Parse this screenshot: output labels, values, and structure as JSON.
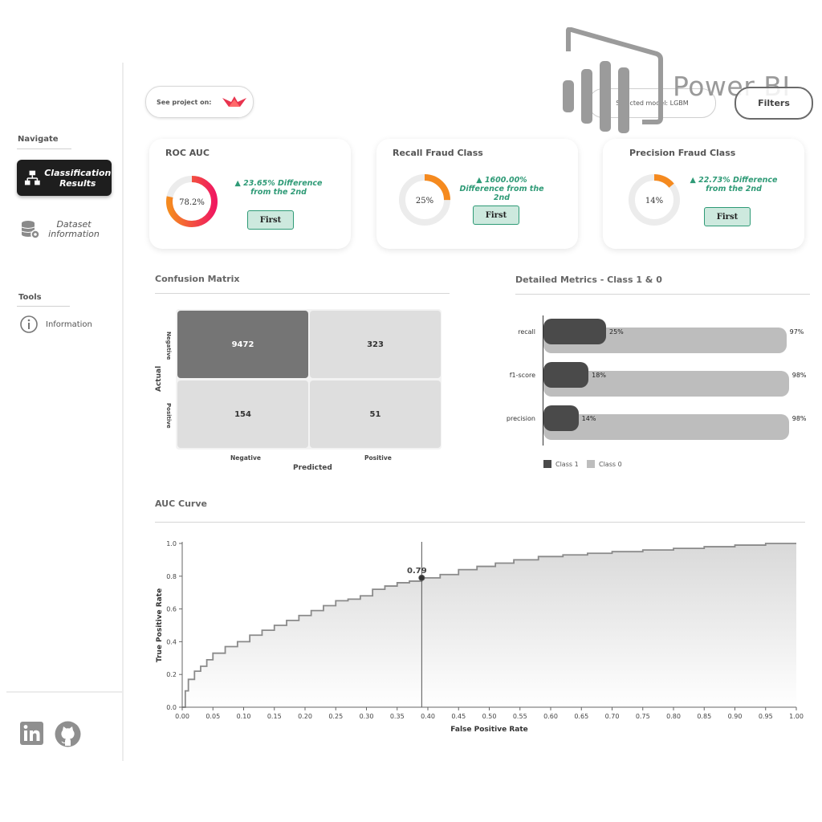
{
  "sidebar": {
    "navigate_title": "Navigate",
    "items": [
      {
        "label": "Classification Results",
        "active": true
      },
      {
        "label": "Dataset information",
        "active": false
      }
    ],
    "tools_title": "Tools",
    "info_label": "Information"
  },
  "header": {
    "see_project_label": "See project on:",
    "selected_model_label": "Selected model: LGBM",
    "filters_label": "Filters",
    "powerbi_text": "Power BI"
  },
  "kpis": [
    {
      "title": "ROC AUC",
      "value_text": "78.2%",
      "value": 0.782,
      "diff": "23.65% Difference from the 2nd",
      "rank": "First"
    },
    {
      "title": "Recall Fraud Class",
      "value_text": "25%",
      "value": 0.25,
      "diff": "1600.00% Difference from the 2nd",
      "rank": "First"
    },
    {
      "title": "Precision Fraud Class",
      "value_text": "14%",
      "value": 0.14,
      "diff": "22.73% Difference from the 2nd",
      "rank": "First"
    }
  ],
  "confusion_matrix": {
    "title": "Confusion Matrix",
    "cells": [
      "9472",
      "323",
      "154",
      "51"
    ],
    "row_labels": [
      "Negative",
      "Positive"
    ],
    "col_labels": [
      "Negative",
      "Positive"
    ],
    "ylabel": "Actual",
    "xlabel": "Predicted"
  },
  "detailed_metrics": {
    "title": "Detailed Metrics - Class 1 & 0",
    "legend": [
      "Class 1",
      "Class 0"
    ]
  },
  "auc_curve": {
    "title": "AUC Curve",
    "marker_label": "0.79"
  },
  "colors": {
    "accent_green": "#2e9a76",
    "dark_bar": "#4a4a4a",
    "light_bar": "#bdbdbd",
    "donut_orange": "#f58a1f",
    "donut_pink": "#f0195f"
  },
  "icons": [
    "sitemap-icon",
    "database-gear-icon",
    "info-icon",
    "streamlit-icon",
    "linkedin-icon",
    "github-icon",
    "powerbi-logo-icon"
  ],
  "chart_data": [
    {
      "type": "bar",
      "orientation": "horizontal",
      "categories": [
        "recall",
        "f1-score",
        "precision"
      ],
      "series": [
        {
          "name": "Class 1",
          "values": [
            25,
            18,
            14
          ],
          "labels": [
            "25%",
            "18%",
            "14%"
          ]
        },
        {
          "name": "Class 0",
          "values": [
            97,
            98,
            98
          ],
          "labels": [
            "97%",
            "98%",
            "98%"
          ]
        }
      ],
      "title": "Detailed Metrics - Class 1 & 0",
      "legend": "bottom-left",
      "xlim": [
        0,
        100
      ]
    },
    {
      "type": "area",
      "title": "AUC Curve",
      "xlabel": "False Positive Rate",
      "ylabel": "True Positive Rate",
      "xlim": [
        0,
        1
      ],
      "ylim": [
        0,
        1
      ],
      "xticks": [
        "0.00",
        "0.05",
        "0.10",
        "0.15",
        "0.20",
        "0.25",
        "0.30",
        "0.35",
        "0.40",
        "0.45",
        "0.50",
        "0.55",
        "0.60",
        "0.65",
        "0.70",
        "0.75",
        "0.80",
        "0.85",
        "0.90",
        "0.95",
        "1.00"
      ],
      "yticks": [
        "0.0",
        "0.2",
        "0.4",
        "0.6",
        "0.8",
        "1.0"
      ],
      "x": [
        0,
        0.005,
        0.01,
        0.02,
        0.03,
        0.04,
        0.05,
        0.07,
        0.09,
        0.11,
        0.13,
        0.15,
        0.17,
        0.19,
        0.21,
        0.23,
        0.25,
        0.27,
        0.29,
        0.31,
        0.33,
        0.35,
        0.37,
        0.39,
        0.42,
        0.45,
        0.48,
        0.51,
        0.54,
        0.58,
        0.62,
        0.66,
        0.7,
        0.75,
        0.8,
        0.85,
        0.9,
        0.95,
        1.0
      ],
      "y": [
        0,
        0.1,
        0.17,
        0.22,
        0.25,
        0.29,
        0.33,
        0.37,
        0.4,
        0.44,
        0.47,
        0.5,
        0.53,
        0.56,
        0.59,
        0.62,
        0.65,
        0.66,
        0.68,
        0.72,
        0.74,
        0.76,
        0.77,
        0.79,
        0.81,
        0.84,
        0.86,
        0.88,
        0.9,
        0.92,
        0.93,
        0.94,
        0.95,
        0.96,
        0.97,
        0.98,
        0.99,
        1.0,
        1.0
      ],
      "marker": {
        "x": 0.39,
        "y": 0.79,
        "label": "0.79"
      }
    }
  ]
}
